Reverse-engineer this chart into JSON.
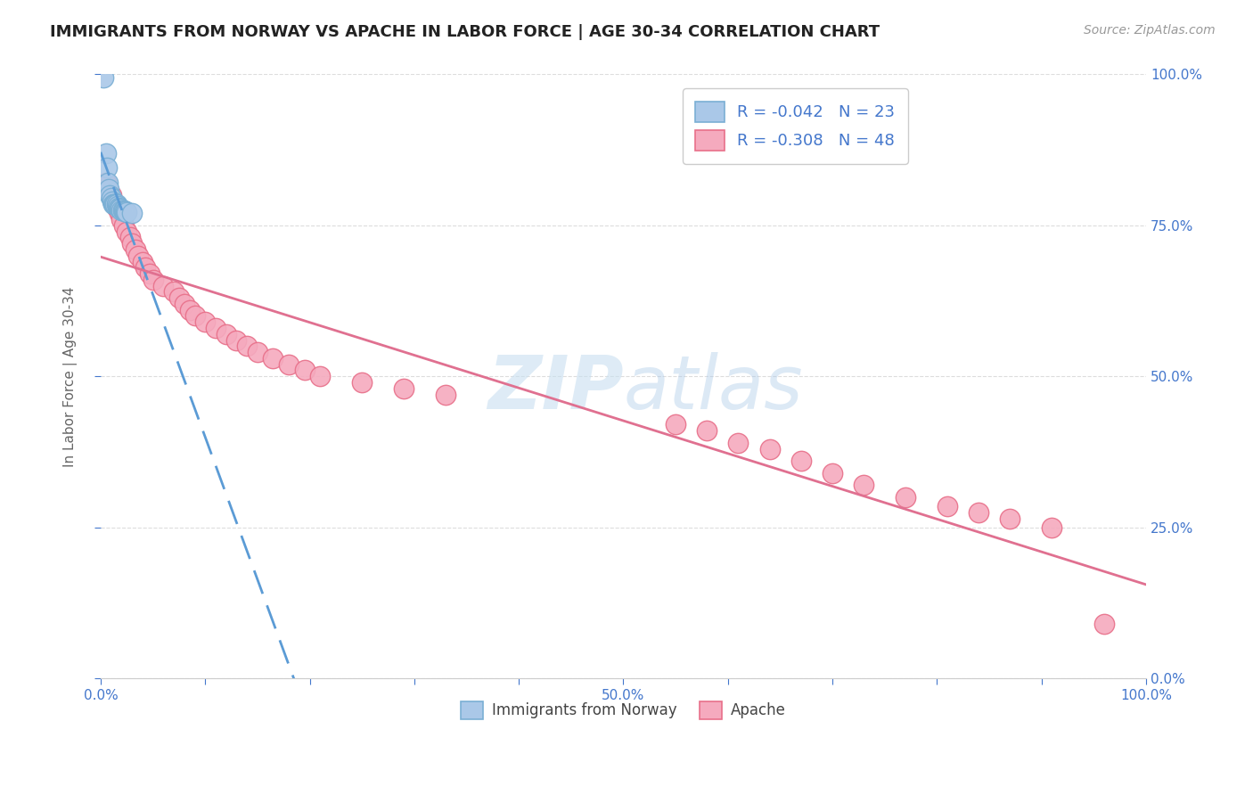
{
  "title": "IMMIGRANTS FROM NORWAY VS APACHE IN LABOR FORCE | AGE 30-34 CORRELATION CHART",
  "source": "Source: ZipAtlas.com",
  "ylabel": "In Labor Force | Age 30-34",
  "xlim": [
    0.0,
    1.0
  ],
  "ylim": [
    0.0,
    1.0
  ],
  "xticks": [
    0.0,
    0.1,
    0.2,
    0.3,
    0.4,
    0.5,
    0.6,
    0.7,
    0.8,
    0.9,
    1.0
  ],
  "yticks": [
    0.0,
    0.25,
    0.5,
    0.75,
    1.0
  ],
  "xtick_labels": [
    "0.0%",
    "",
    "",
    "",
    "",
    "50.0%",
    "",
    "",
    "",
    "",
    "100.0%"
  ],
  "ytick_labels_right": [
    "0.0%",
    "25.0%",
    "50.0%",
    "75.0%",
    "100.0%"
  ],
  "norway_color": "#aac8e8",
  "apache_color": "#f5aabe",
  "norway_edge": "#7aafd4",
  "apache_edge": "#e8708a",
  "norway_R": -0.042,
  "norway_N": 23,
  "apache_R": -0.308,
  "apache_N": 48,
  "text_color": "#4477cc",
  "watermark_color": "#c8dff0",
  "norway_x": [
    0.003,
    0.005,
    0.006,
    0.007,
    0.008,
    0.009,
    0.01,
    0.011,
    0.012,
    0.013,
    0.014,
    0.015,
    0.016,
    0.017,
    0.018,
    0.019,
    0.02,
    0.021,
    0.022,
    0.023,
    0.024,
    0.025,
    0.03
  ],
  "norway_y": [
    0.995,
    0.87,
    0.845,
    0.82,
    0.81,
    0.8,
    0.795,
    0.79,
    0.785,
    0.785,
    0.785,
    0.785,
    0.782,
    0.78,
    0.778,
    0.778,
    0.775,
    0.775,
    0.775,
    0.773,
    0.773,
    0.772,
    0.77
  ],
  "apache_x": [
    0.005,
    0.01,
    0.012,
    0.015,
    0.018,
    0.02,
    0.022,
    0.025,
    0.028,
    0.03,
    0.033,
    0.036,
    0.04,
    0.043,
    0.047,
    0.05,
    0.06,
    0.07,
    0.075,
    0.08,
    0.085,
    0.09,
    0.1,
    0.11,
    0.12,
    0.13,
    0.14,
    0.15,
    0.165,
    0.18,
    0.195,
    0.21,
    0.25,
    0.29,
    0.33,
    0.55,
    0.58,
    0.61,
    0.64,
    0.67,
    0.7,
    0.73,
    0.77,
    0.81,
    0.84,
    0.87,
    0.91,
    0.96
  ],
  "apache_y": [
    0.82,
    0.8,
    0.79,
    0.78,
    0.77,
    0.76,
    0.75,
    0.74,
    0.73,
    0.72,
    0.71,
    0.7,
    0.69,
    0.68,
    0.67,
    0.66,
    0.65,
    0.64,
    0.63,
    0.62,
    0.61,
    0.6,
    0.59,
    0.58,
    0.57,
    0.56,
    0.55,
    0.54,
    0.53,
    0.52,
    0.51,
    0.5,
    0.49,
    0.48,
    0.47,
    0.42,
    0.41,
    0.39,
    0.38,
    0.36,
    0.34,
    0.32,
    0.3,
    0.285,
    0.275,
    0.265,
    0.25,
    0.09
  ]
}
